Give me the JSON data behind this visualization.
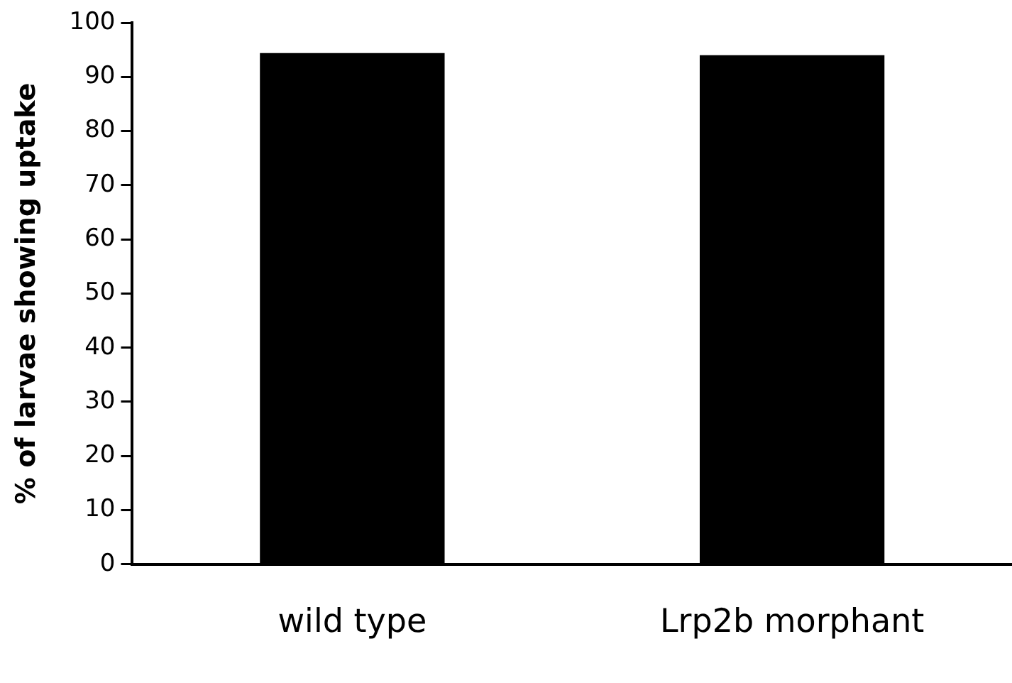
{
  "chart_data": {
    "type": "bar",
    "ylabel": "% of larvae showing uptake",
    "categories": [
      "wild type",
      "Lrp2b morphant"
    ],
    "values": [
      94.4,
      94.0
    ],
    "color": "#000000",
    "ylim": [
      0,
      100
    ],
    "yticks": [
      0,
      10,
      20,
      30,
      40,
      50,
      60,
      70,
      80,
      90,
      100
    ],
    "grid": false,
    "legend": false
  }
}
